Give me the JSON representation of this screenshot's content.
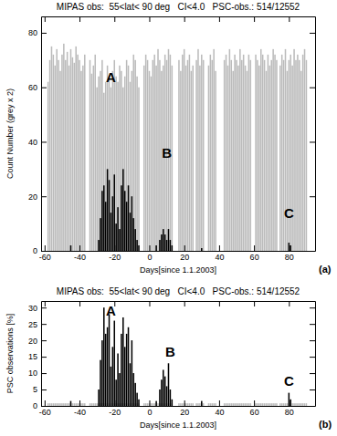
{
  "chart_data": [
    {
      "type": "bar",
      "title": "MIPAS obs:  55<lat< 90 deg   CI<4.0   PSC-obs.: 514/12552",
      "x_label": "Days[since 1.1.2003]",
      "y_label": "Count Number (grey x 2)",
      "panel_label": "(a)",
      "xlim": [
        -62,
        95
      ],
      "xticks": [
        -60,
        -40,
        -20,
        0,
        20,
        40,
        60,
        80
      ],
      "ylim": [
        0,
        86
      ],
      "yticks": [
        0,
        20,
        40,
        60,
        80
      ],
      "annotations": [
        {
          "text": "A",
          "x": -22,
          "y": 62
        },
        {
          "text": "B",
          "x": 10,
          "y": 34
        },
        {
          "text": "C",
          "x": 80,
          "y": 12
        }
      ],
      "x": [
        -58,
        -57,
        -56,
        -55,
        -54,
        -53,
        -52,
        -51,
        -50,
        -49,
        -48,
        -47,
        -46,
        -45,
        -44,
        -43,
        -42,
        -41,
        -40,
        -39,
        -38,
        -37,
        -36,
        -35,
        -34,
        -33,
        -32,
        -31,
        -30,
        -29,
        -28,
        -27,
        -26,
        -25,
        -24,
        -23,
        -22,
        -21,
        -20,
        -19,
        -18,
        -17,
        -16,
        -15,
        -14,
        -13,
        -12,
        -11,
        -10,
        -9,
        -8,
        -7,
        -6,
        -5,
        -4,
        -3,
        -2,
        -1,
        0,
        1,
        2,
        3,
        4,
        5,
        6,
        7,
        8,
        9,
        10,
        11,
        12,
        13,
        14,
        15,
        16,
        17,
        18,
        19,
        20,
        21,
        22,
        23,
        24,
        25,
        26,
        27,
        28,
        29,
        30,
        31,
        32,
        33,
        34,
        35,
        36,
        37,
        38,
        39,
        40,
        41,
        42,
        43,
        44,
        45,
        46,
        47,
        48,
        49,
        50,
        51,
        52,
        53,
        54,
        55,
        56,
        57,
        58,
        59,
        60,
        61,
        62,
        63,
        64,
        65,
        66,
        67,
        68,
        69,
        70,
        71,
        72,
        73,
        74,
        75,
        76,
        77,
        78,
        79,
        80,
        81,
        82,
        83,
        84,
        85,
        86,
        87,
        88,
        89,
        90
      ],
      "series": [
        {
          "color": "#bbbbbb",
          "values": [
            62,
            70,
            75,
            72,
            68,
            74,
            70,
            66,
            72,
            76,
            70,
            73,
            68,
            74,
            71,
            69,
            75,
            72,
            70,
            66,
            68,
            72,
            null,
            null,
            70,
            65,
            68,
            72,
            60,
            64,
            66,
            70,
            58,
            62,
            68,
            64,
            60,
            66,
            70,
            64,
            62,
            68,
            66,
            60,
            64,
            70,
            68,
            62,
            66,
            72,
            70,
            64,
            60,
            null,
            null,
            68,
            72,
            70,
            66,
            64,
            70,
            72,
            68,
            74,
            70,
            66,
            68,
            72,
            70,
            74,
            72,
            68,
            null,
            null,
            null,
            70,
            66,
            72,
            74,
            68,
            70,
            72,
            66,
            68,
            null,
            70,
            74,
            68,
            72,
            70,
            null,
            null,
            68,
            72,
            70,
            74,
            66,
            null,
            null,
            null,
            null,
            70,
            72,
            68,
            74,
            70,
            66,
            72,
            70,
            68,
            74,
            70,
            72,
            68,
            66,
            72,
            70,
            null,
            null,
            72,
            70,
            68,
            74,
            72,
            70,
            66,
            72,
            68,
            70,
            74,
            72,
            70,
            null,
            68,
            72,
            70,
            74,
            66,
            70,
            72,
            68,
            74,
            70,
            72,
            70,
            66,
            72,
            74,
            70
          ]
        },
        {
          "color": "#000000",
          "values": [
            0,
            0,
            0,
            0,
            0,
            0,
            0,
            0,
            0,
            0,
            0,
            0,
            0,
            2,
            0,
            0,
            0,
            0,
            0,
            0,
            0,
            0,
            null,
            null,
            0,
            0,
            0,
            0,
            0,
            4,
            12,
            22,
            24,
            18,
            30,
            26,
            14,
            20,
            28,
            10,
            16,
            8,
            24,
            30,
            22,
            18,
            24,
            14,
            20,
            12,
            8,
            4,
            2,
            null,
            null,
            0,
            0,
            0,
            0,
            0,
            0,
            0,
            2,
            0,
            4,
            6,
            8,
            6,
            4,
            8,
            4,
            2,
            null,
            null,
            null,
            0,
            0,
            0,
            0,
            0,
            0,
            0,
            0,
            0,
            null,
            0,
            0,
            0,
            1,
            0,
            null,
            null,
            0,
            0,
            0,
            0,
            0,
            null,
            null,
            null,
            null,
            0,
            0,
            0,
            0,
            0,
            0,
            0,
            0,
            0,
            0,
            0,
            0,
            0,
            0,
            0,
            0,
            null,
            null,
            0,
            0,
            0,
            0,
            0,
            0,
            0,
            0,
            0,
            0,
            0,
            0,
            0,
            null,
            0,
            0,
            0,
            0,
            0,
            3,
            2,
            0,
            0,
            0,
            0,
            0,
            0,
            0,
            0,
            0
          ]
        }
      ]
    },
    {
      "type": "bar",
      "title": "MIPAS obs:  55<lat< 90 deg   CI<4.0   PSC-obs.: 514/12552",
      "x_label": "Days[since 1.1.2003]",
      "y_label": "PSC observations [%]",
      "panel_label": "(b)",
      "xlim": [
        -62,
        95
      ],
      "xticks": [
        -60,
        -40,
        -20,
        0,
        20,
        40,
        60,
        80
      ],
      "ylim": [
        0,
        32
      ],
      "yticks": [
        0,
        5,
        10,
        15,
        20,
        25,
        30
      ],
      "annotations": [
        {
          "text": "A",
          "x": -22,
          "y": 27.5
        },
        {
          "text": "B",
          "x": 12,
          "y": 15
        },
        {
          "text": "C",
          "x": 80,
          "y": 6
        }
      ],
      "x": [
        -58,
        -57,
        -56,
        -55,
        -54,
        -53,
        -52,
        -51,
        -50,
        -49,
        -48,
        -47,
        -46,
        -45,
        -44,
        -43,
        -42,
        -41,
        -40,
        -39,
        -38,
        -37,
        -36,
        -35,
        -34,
        -33,
        -32,
        -31,
        -30,
        -29,
        -28,
        -27,
        -26,
        -25,
        -24,
        -23,
        -22,
        -21,
        -20,
        -19,
        -18,
        -17,
        -16,
        -15,
        -14,
        -13,
        -12,
        -11,
        -10,
        -9,
        -8,
        -7,
        -6,
        -5,
        -4,
        -3,
        -2,
        -1,
        0,
        1,
        2,
        3,
        4,
        5,
        6,
        7,
        8,
        9,
        10,
        11,
        12,
        13,
        14,
        15,
        16,
        17,
        18,
        19,
        20,
        21,
        22,
        23,
        24,
        25,
        26,
        27,
        28,
        29,
        30,
        31,
        32,
        33,
        34,
        35,
        36,
        37,
        38,
        39,
        40,
        41,
        42,
        43,
        44,
        45,
        46,
        47,
        48,
        49,
        50,
        51,
        52,
        53,
        54,
        55,
        56,
        57,
        58,
        59,
        60,
        61,
        62,
        63,
        64,
        65,
        66,
        67,
        68,
        69,
        70,
        71,
        72,
        73,
        74,
        75,
        76,
        77,
        78,
        79,
        80,
        81,
        82,
        83,
        84,
        85,
        86,
        87,
        88,
        89,
        90
      ],
      "series": [
        {
          "color": "#bbbbbb",
          "values": [
            0.8,
            0.8,
            0.8,
            0.8,
            0.8,
            0.8,
            0.8,
            0.8,
            0.8,
            0.8,
            0.8,
            0.8,
            0.8,
            0.8,
            0.8,
            0.8,
            0.8,
            0.8,
            0.8,
            0.8,
            0.8,
            0.8,
            null,
            null,
            0.8,
            0.8,
            0.8,
            0.8,
            0.8,
            0.8,
            0.8,
            0.8,
            0.8,
            0.8,
            0.8,
            0.8,
            0.8,
            0.8,
            0.8,
            0.8,
            0.8,
            0.8,
            0.8,
            0.8,
            0.8,
            0.8,
            0.8,
            0.8,
            0.8,
            0.8,
            0.8,
            0.8,
            0.8,
            null,
            null,
            0.8,
            0.8,
            0.8,
            0.8,
            0.8,
            0.8,
            0.8,
            0.8,
            0.8,
            0.8,
            0.8,
            0.8,
            0.8,
            0.8,
            0.8,
            0.8,
            0.8,
            null,
            null,
            null,
            0.8,
            0.8,
            0.8,
            0.8,
            0.8,
            0.8,
            0.8,
            0.8,
            0.8,
            null,
            0.8,
            0.8,
            0.8,
            0.8,
            0.8,
            null,
            null,
            0.8,
            0.8,
            0.8,
            0.8,
            0.8,
            null,
            null,
            null,
            null,
            0.8,
            0.8,
            0.8,
            0.8,
            0.8,
            0.8,
            0.8,
            0.8,
            0.8,
            0.8,
            0.8,
            0.8,
            0.8,
            0.8,
            0.8,
            0.8,
            null,
            null,
            0.8,
            0.8,
            0.8,
            0.8,
            0.8,
            0.8,
            0.8,
            0.8,
            0.8,
            0.8,
            0.8,
            0.8,
            0.8,
            null,
            0.8,
            0.8,
            0.8,
            0.8,
            0.8,
            0.8,
            0.8,
            0.8,
            0.8,
            0.8,
            0.8,
            0.8,
            0.8,
            0.8,
            0.8,
            0.8
          ]
        },
        {
          "color": "#000000",
          "values": [
            0,
            0,
            0,
            0,
            0,
            0,
            0,
            0,
            0,
            0,
            0,
            0,
            0,
            1.5,
            0,
            0,
            0,
            0,
            0,
            0,
            0,
            0,
            null,
            null,
            0,
            0,
            0,
            0,
            0,
            5,
            14,
            20,
            30,
            22,
            24,
            28,
            12,
            18,
            26,
            8,
            16,
            10,
            22,
            27,
            18,
            22,
            24,
            13,
            20,
            10,
            7,
            4,
            2,
            null,
            null,
            0,
            0,
            0,
            0,
            0,
            0,
            0,
            1.5,
            0,
            5,
            8,
            11,
            9,
            6,
            13,
            5,
            2,
            null,
            null,
            null,
            0,
            0,
            0,
            0,
            0,
            0,
            0,
            0,
            0,
            null,
            0,
            0,
            0,
            1.5,
            0,
            null,
            null,
            0,
            0,
            0,
            0,
            0,
            null,
            null,
            null,
            null,
            0,
            0,
            0,
            0,
            0,
            0,
            0,
            0,
            0,
            0,
            0,
            0,
            0,
            0,
            0,
            0,
            null,
            null,
            0,
            0,
            0,
            0,
            0,
            0,
            0,
            0,
            0,
            0,
            0,
            0,
            0,
            null,
            0,
            0,
            0,
            0,
            0,
            4,
            2,
            0,
            0,
            0,
            0,
            0,
            0,
            0,
            0,
            0
          ]
        }
      ]
    }
  ]
}
